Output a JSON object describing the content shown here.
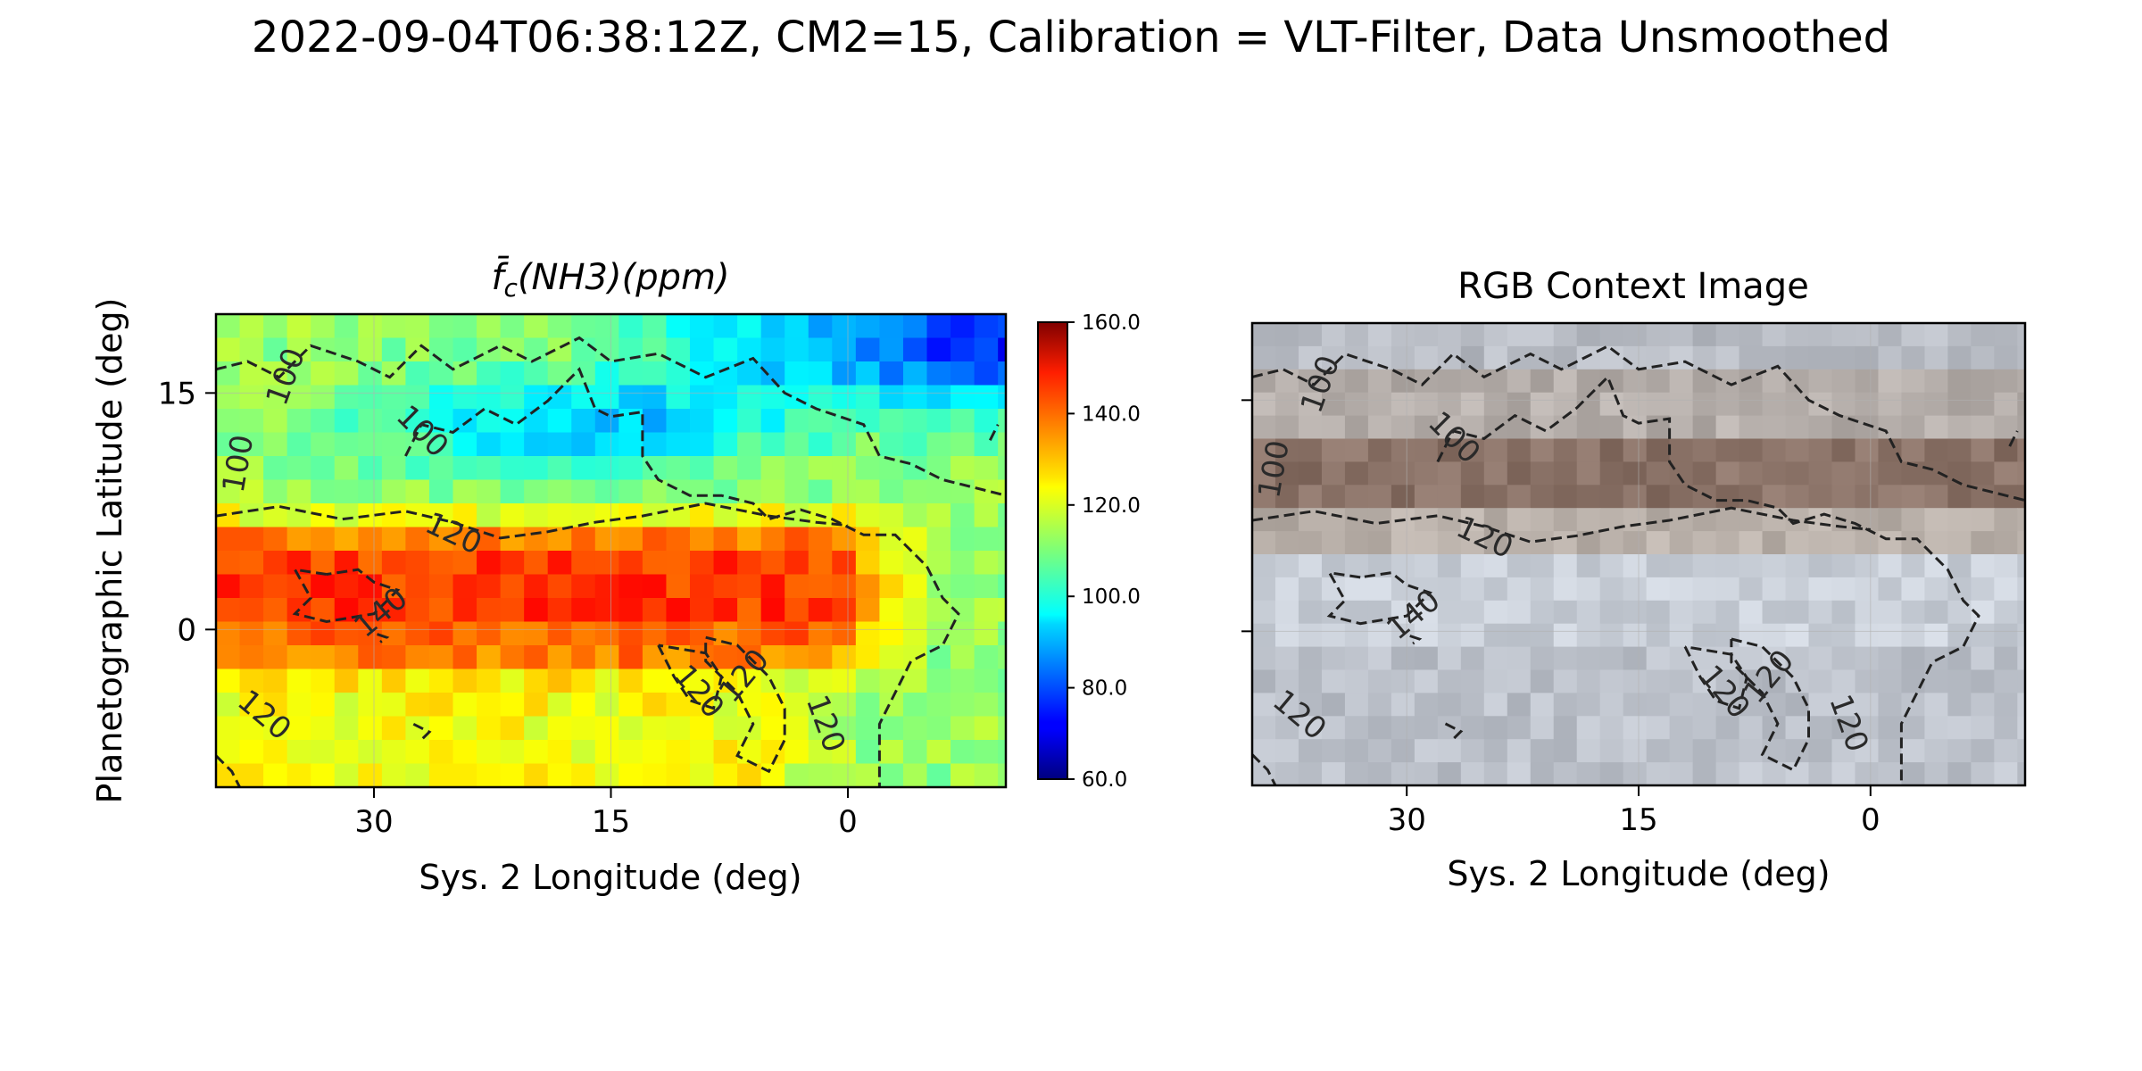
{
  "figure": {
    "suptitle": "2022-09-04T06:38:12Z, CM2=15, Calibration = VLT-Filter, Data Unsmoothed"
  },
  "chart_data": [
    {
      "type": "heatmap",
      "title": "f̄c(NH3)(ppm)",
      "xlabel": "Sys. 2 Longitude (deg)",
      "ylabel": "Planetographic Latitude (deg)",
      "xlim": [
        40,
        -10
      ],
      "ylim": [
        -10,
        20
      ],
      "x_direction": "decreasing",
      "xticks": [
        30,
        15,
        0
      ],
      "yticks": [
        15,
        0
      ],
      "grid": true,
      "colormap": "jet",
      "colorbar": {
        "vmin": 60,
        "vmax": 160,
        "ticks": [
          "60.0",
          "80.0",
          "100.0",
          "120.0",
          "140.0",
          "160.0"
        ]
      },
      "field_description": {
        "background_ppm": 112,
        "bands": [
          {
            "lat_center": 2.5,
            "lat_halfwidth": 4.5,
            "peak_ppm": 142,
            "lon_range": [
              40,
              0
            ]
          },
          {
            "lat_center": 13,
            "lat_halfwidth": 3,
            "peak_ppm": 95,
            "lon_range": [
              30,
              5
            ]
          }
        ],
        "southern_band_ppm": 122
      },
      "contour_levels": [
        100,
        120,
        140
      ],
      "contour_labels": [
        {
          "text": "100",
          "lon": 35.5,
          "lat": 16,
          "angle": -70
        },
        {
          "text": "100",
          "lon": 27,
          "lat": 12.5,
          "angle": 45
        },
        {
          "text": "100",
          "lon": 38.5,
          "lat": 10.5,
          "angle": -80
        },
        {
          "text": "120",
          "lon": 25,
          "lat": 6,
          "angle": 25
        },
        {
          "text": "140",
          "lon": 29.5,
          "lat": 1,
          "angle": -40
        },
        {
          "text": "120",
          "lon": 37,
          "lat": -5.5,
          "angle": 40
        },
        {
          "text": "120",
          "lon": 9.5,
          "lat": -4,
          "angle": 50
        },
        {
          "text": "120",
          "lon": 6.5,
          "lat": -3,
          "angle": -50
        },
        {
          "text": "120",
          "lon": 1.5,
          "lat": -6,
          "angle": 70
        }
      ]
    },
    {
      "type": "image",
      "title": "RGB Context Image",
      "xlabel": "Sys. 2 Longitude (deg)",
      "xlim": [
        40,
        -10
      ],
      "ylim": [
        -10,
        20
      ],
      "xticks": [
        30,
        15,
        0
      ],
      "yticks": [
        15,
        0
      ],
      "grid": true,
      "bands": [
        {
          "lat_range": [
            17,
            20
          ],
          "color": "#b8bcc0"
        },
        {
          "lat_range": [
            13,
            17
          ],
          "color": "#b5aea6"
        },
        {
          "lat_range": [
            8,
            13
          ],
          "color": "#8a7263"
        },
        {
          "lat_range": [
            5,
            8
          ],
          "color": "#b9b0a5"
        },
        {
          "lat_range": [
            -1,
            5
          ],
          "color": "#c9cfd4"
        },
        {
          "lat_range": [
            -10,
            -1
          ],
          "color": "#bcc1c6"
        }
      ],
      "contour_labels": [
        {
          "text": "100",
          "lon": 35.5,
          "lat": 16,
          "angle": -70
        },
        {
          "text": "100",
          "lon": 27,
          "lat": 12.5,
          "angle": 45
        },
        {
          "text": "100",
          "lon": 38.5,
          "lat": 10.5,
          "angle": -80
        },
        {
          "text": "120",
          "lon": 25,
          "lat": 6,
          "angle": 25
        },
        {
          "text": "140",
          "lon": 29.5,
          "lat": 1,
          "angle": -40
        },
        {
          "text": "120",
          "lon": 37,
          "lat": -5.5,
          "angle": 40
        },
        {
          "text": "120",
          "lon": 9.5,
          "lat": -4,
          "angle": 50
        },
        {
          "text": "120",
          "lon": 6.5,
          "lat": -3,
          "angle": -50
        },
        {
          "text": "120",
          "lon": 1.5,
          "lat": -6,
          "angle": 70
        }
      ]
    }
  ]
}
